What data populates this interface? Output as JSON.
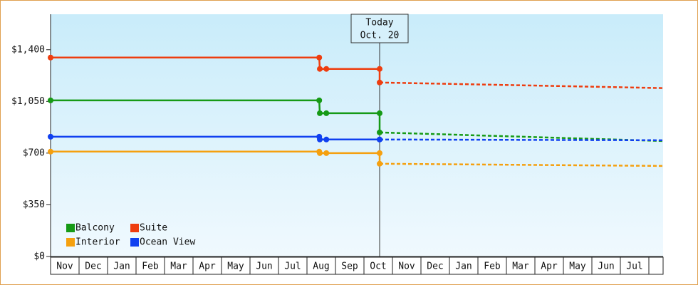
{
  "chart_data": {
    "type": "line",
    "xlim": [
      0,
      21.5
    ],
    "xticks": [
      {
        "value": 0.5,
        "label": "Nov"
      },
      {
        "value": 1.5,
        "label": "Dec"
      },
      {
        "value": 2.5,
        "label": "Jan"
      },
      {
        "value": 3.5,
        "label": "Feb"
      },
      {
        "value": 4.5,
        "label": "Mar"
      },
      {
        "value": 5.5,
        "label": "Apr"
      },
      {
        "value": 6.5,
        "label": "May"
      },
      {
        "value": 7.5,
        "label": "Jun"
      },
      {
        "value": 8.5,
        "label": "Jul"
      },
      {
        "value": 9.5,
        "label": "Aug"
      },
      {
        "value": 10.5,
        "label": "Sep"
      },
      {
        "value": 11.5,
        "label": "Oct"
      },
      {
        "value": 12.5,
        "label": "Nov"
      },
      {
        "value": 13.5,
        "label": "Dec"
      },
      {
        "value": 14.5,
        "label": "Jan"
      },
      {
        "value": 15.5,
        "label": "Feb"
      },
      {
        "value": 16.5,
        "label": "Mar"
      },
      {
        "value": 17.5,
        "label": "Apr"
      },
      {
        "value": 18.5,
        "label": "May"
      },
      {
        "value": 19.5,
        "label": "Jun"
      },
      {
        "value": 20.5,
        "label": "Jul"
      }
    ],
    "ylim": [
      0,
      1640
    ],
    "yticks": [
      {
        "value": 0,
        "label": "$0"
      },
      {
        "value": 350,
        "label": "$350"
      },
      {
        "value": 700,
        "label": "$700"
      },
      {
        "value": 1050,
        "label": "$1,050"
      },
      {
        "value": 1400,
        "label": "$1,400"
      }
    ],
    "today": {
      "x": 11.55,
      "label": "Today",
      "date": "Oct. 20"
    },
    "series": [
      {
        "name": "Balcony",
        "color": "#169a16",
        "x": [
          0,
          9.43,
          9.45,
          9.68,
          11.55
        ],
        "values": [
          1057,
          1057,
          970,
          970,
          970
        ],
        "forecast_x": [
          11.55,
          21.5
        ],
        "forecast_values": [
          840,
          782
        ]
      },
      {
        "name": "Suite",
        "color": "#ee3d0f",
        "x": [
          0,
          9.43,
          9.45,
          9.68,
          11.55
        ],
        "values": [
          1347,
          1347,
          1270,
          1270,
          1270
        ],
        "forecast_x": [
          11.55,
          21.5
        ],
        "forecast_values": [
          1178,
          1140
        ]
      },
      {
        "name": "Interior",
        "color": "#f5a00f",
        "x": [
          0,
          9.43,
          9.45,
          9.68,
          11.55
        ],
        "values": [
          710,
          710,
          700,
          700,
          700
        ],
        "forecast_x": [
          11.55,
          21.5
        ],
        "forecast_values": [
          628,
          613
        ]
      },
      {
        "name": "Ocean View",
        "color": "#1040f0",
        "x": [
          0,
          9.43,
          9.45,
          9.68,
          11.55
        ],
        "values": [
          811,
          811,
          792,
          792,
          792
        ],
        "forecast_x": [
          11.55,
          21.5
        ],
        "forecast_values": [
          792,
          787
        ]
      }
    ]
  }
}
